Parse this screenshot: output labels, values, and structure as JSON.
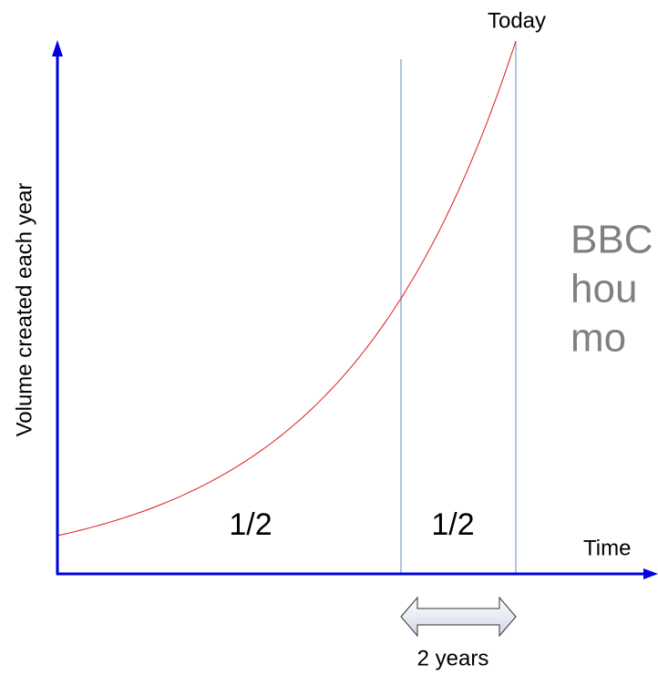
{
  "title": "Today",
  "y_axis_label": "Volume created each year",
  "x_axis_label": "Time",
  "halves": [
    "1/2",
    "1/2"
  ],
  "span_label": "2 years",
  "side_text": [
    "BBC",
    "hou",
    "mo"
  ]
}
